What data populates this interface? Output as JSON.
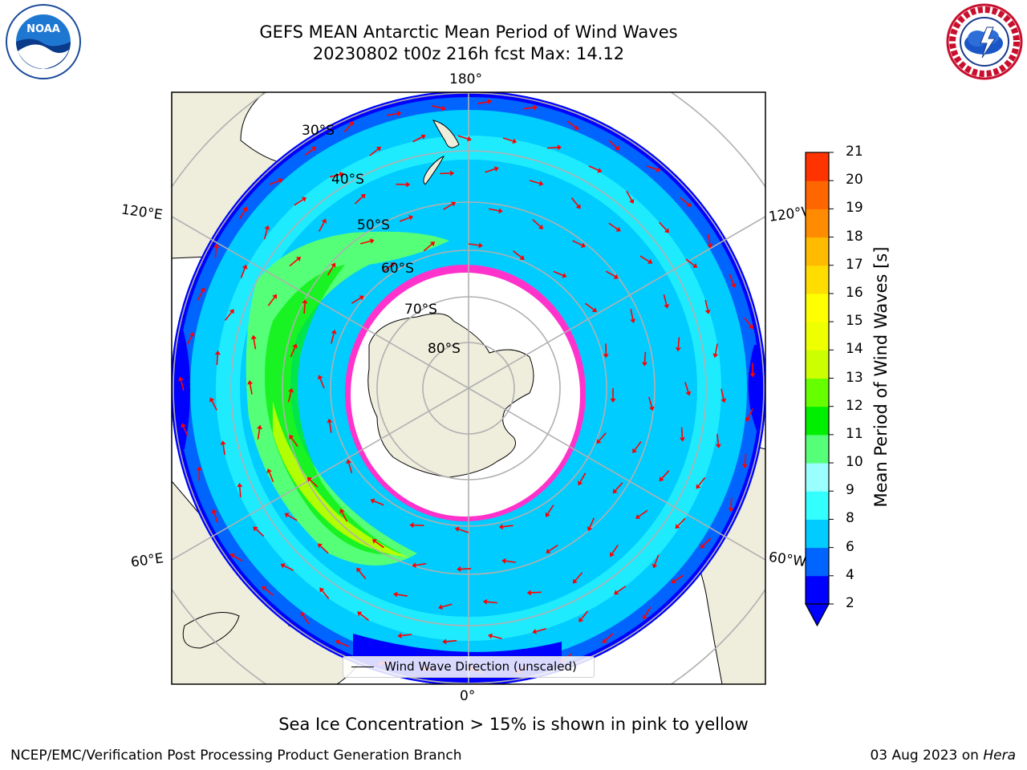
{
  "header": {
    "title_line1": "GEFS MEAN Antarctic Mean Period of Wind Waves",
    "title_line2": "20230802 t00z 216h fcst   Max: 14.12"
  },
  "logos": {
    "left": {
      "icon": "noaa-logo",
      "text": "NOAA"
    },
    "right": {
      "icon": "national-weather-service-logo"
    }
  },
  "map": {
    "projection": "south-polar-stereographic",
    "longitude_labels": [
      "180°",
      "120°E",
      "120°W",
      "60°E",
      "60°W",
      "0°"
    ],
    "latitude_labels": [
      "30°S",
      "40°S",
      "50°S",
      "60°S",
      "70°S",
      "80°S"
    ],
    "legend": {
      "label": "Wind Wave Direction (unscaled)"
    },
    "arrow_color": "#ff0000",
    "land_color": "#efeddc",
    "ice_edge_colors": [
      "#ff33cc",
      "#ffff00"
    ]
  },
  "chart_data": {
    "type": "heatmap",
    "title": "GEFS MEAN Antarctic Mean Period of Wind Waves",
    "colorbar": {
      "label": "Mean Period of Wind Waves [s]",
      "ticks": [
        2,
        4,
        6,
        8,
        9,
        10,
        11,
        12,
        13,
        14,
        15,
        16,
        17,
        18,
        19,
        20,
        21
      ],
      "extend": "min",
      "colors": [
        "#0000ff",
        "#0064ff",
        "#00ccff",
        "#33ffff",
        "#99ffff",
        "#55ff77",
        "#00ee00",
        "#66ff00",
        "#ccff00",
        "#eeff00",
        "#ffff00",
        "#ffdd00",
        "#ffbb00",
        "#ff8c00",
        "#ff6600",
        "#ff3300",
        "#ff0000"
      ]
    },
    "max": 14.12
  },
  "footer": {
    "caption": "Sea Ice Concentration > 15% is shown in pink to yellow",
    "left": "NCEP/EMC/Verification Post Processing Product Generation Branch",
    "right_date": "03 Aug 2023 on ",
    "right_machine": "Hera"
  }
}
